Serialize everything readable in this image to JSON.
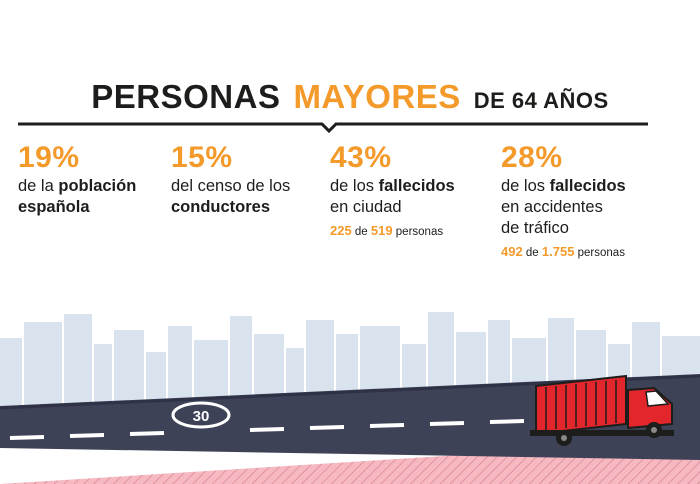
{
  "title": {
    "part1": "PERSONAS",
    "part2": "MAYORES",
    "part3": "DE 64 AÑOS"
  },
  "stats": [
    {
      "percent": "19%",
      "line1_prefix": "de la ",
      "line1_bold": "población",
      "line2_bold": "española"
    },
    {
      "percent": "15%",
      "line1": "del censo de los",
      "line2_bold": "conductores"
    },
    {
      "percent": "43%",
      "line1_prefix": "de los ",
      "line1_bold": "fallecidos",
      "line2": "en ciudad",
      "count_num1": "225",
      "count_de": " de ",
      "count_num2": "519",
      "count_suffix": " personas"
    },
    {
      "percent": "28%",
      "line1_prefix": "de los ",
      "line1_bold": "fallecidos",
      "line2": "en accidentes",
      "line3": "de tráfico",
      "count_num1": "492",
      "count_de": " de ",
      "count_num2": "1.755",
      "count_suffix": " personas"
    }
  ],
  "road_sign": {
    "label": "30"
  },
  "colors": {
    "accent": "#f39a2b",
    "text": "#1d1d1b",
    "skyline": "#d9e3ee",
    "road": "#3e4257",
    "truck": "#e3262b",
    "ground": "#f6b9c2"
  },
  "icons": [
    "city-skyline-illustration",
    "truck-icon",
    "speed-limit-marking"
  ]
}
